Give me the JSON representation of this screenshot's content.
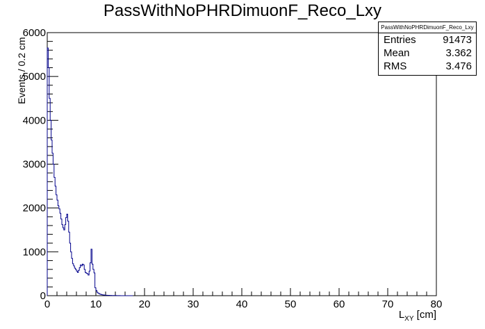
{
  "title": "PassWithNoPHRDimuonF_Reco_Lxy",
  "stats": {
    "name": "PassWithNoPHRDimuonF_Reco_Lxy",
    "entries_label": "Entries",
    "entries": "91473",
    "mean_label": "Mean",
    "mean": "3.362",
    "rms_label": "RMS",
    "rms": "3.476"
  },
  "chart_data": {
    "type": "histogram",
    "title": "PassWithNoPHRDimuonF_Reco_Lxy",
    "xlabel_main": "L",
    "xlabel_sub": "XY",
    "xlabel_unit": " [cm]",
    "ylabel": "Events / 0.2 cm",
    "xlim": [
      0,
      80
    ],
    "ylim": [
      0,
      6000
    ],
    "bin_width": 0.2,
    "x_ticks": [
      "0",
      "10",
      "20",
      "30",
      "40",
      "50",
      "60",
      "70",
      "80"
    ],
    "y_ticks": [
      "0",
      "1000",
      "2000",
      "3000",
      "4000",
      "5000",
      "6000"
    ],
    "line_color": "#00008b",
    "bins_start": 0,
    "values": [
      5650,
      5200,
      4500,
      4000,
      3550,
      3250,
      3000,
      2700,
      2500,
      2300,
      2180,
      2050,
      1980,
      1880,
      1750,
      1620,
      1550,
      1500,
      1620,
      1780,
      1860,
      1700,
      1450,
      1200,
      1000,
      850,
      730,
      680,
      630,
      600,
      560,
      530,
      580,
      640,
      700,
      680,
      720,
      700,
      600,
      530,
      510,
      500,
      470,
      560,
      750,
      1060,
      720,
      600,
      520,
      180,
      120,
      80,
      60,
      45,
      35,
      28,
      22,
      18,
      15,
      12,
      10,
      9,
      8,
      7,
      6,
      5,
      4,
      4,
      3,
      3,
      3,
      2,
      2,
      2,
      2,
      1,
      1,
      1,
      1,
      1,
      1,
      0,
      0,
      0,
      0,
      0,
      0,
      0
    ]
  }
}
